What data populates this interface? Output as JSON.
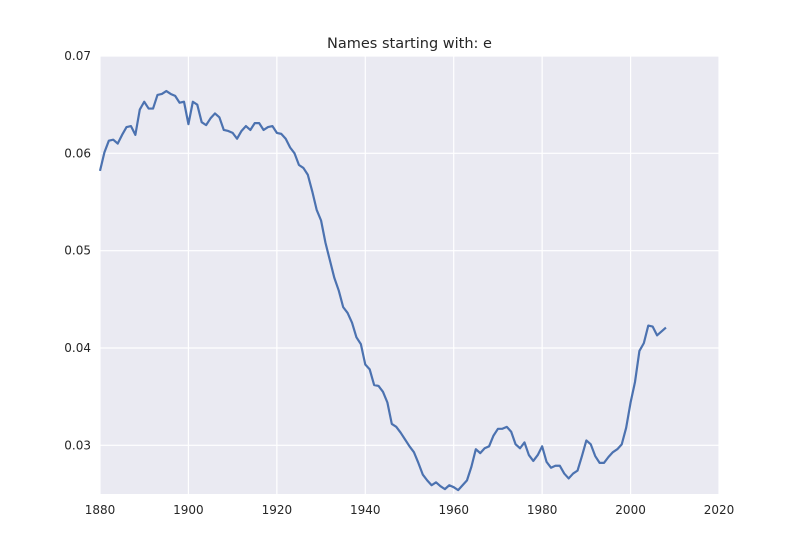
{
  "chart_data": {
    "type": "line",
    "title": "Names starting with: e",
    "xlabel": "",
    "ylabel": "",
    "xlim": [
      1880,
      2020
    ],
    "ylim": [
      0.025,
      0.07
    ],
    "x_ticks": [
      1880,
      1900,
      1920,
      1940,
      1960,
      1980,
      2000,
      2020
    ],
    "x_tick_labels": [
      "1880",
      "1900",
      "1920",
      "1940",
      "1960",
      "1980",
      "2000",
      "2020"
    ],
    "y_ticks": [
      0.03,
      0.04,
      0.05,
      0.06,
      0.07
    ],
    "y_tick_labels": [
      "0.03",
      "0.04",
      "0.05",
      "0.06",
      "0.07"
    ],
    "grid": true,
    "colors": {
      "background": "#eaeaf2",
      "grid": "#ffffff",
      "line": "#4c72b0",
      "text": "#262626"
    },
    "series": [
      {
        "x": [
          1880,
          1881,
          1882,
          1883,
          1884,
          1885,
          1886,
          1887,
          1888,
          1889,
          1890,
          1891,
          1892,
          1893,
          1894,
          1895,
          1896,
          1897,
          1898,
          1899,
          1900,
          1901,
          1902,
          1903,
          1904,
          1905,
          1906,
          1907,
          1908,
          1909,
          1910,
          1911,
          1912,
          1913,
          1914,
          1915,
          1916,
          1917,
          1918,
          1919,
          1920,
          1921,
          1922,
          1923,
          1924,
          1925,
          1926,
          1927,
          1928,
          1929,
          1930,
          1931,
          1932,
          1933,
          1934,
          1935,
          1936,
          1937,
          1938,
          1939,
          1940,
          1941,
          1942,
          1943,
          1944,
          1945,
          1946,
          1947,
          1948,
          1949,
          1950,
          1951,
          1952,
          1953,
          1954,
          1955,
          1956,
          1957,
          1958,
          1959,
          1960,
          1961,
          1962,
          1963,
          1964,
          1965,
          1966,
          1967,
          1968,
          1969,
          1970,
          1971,
          1972,
          1973,
          1974,
          1975,
          1976,
          1977,
          1978,
          1979,
          1980,
          1981,
          1982,
          1983,
          1984,
          1985,
          1986,
          1987,
          1988,
          1989,
          1990,
          1991,
          1992,
          1993,
          1994,
          1995,
          1996,
          1997,
          1998,
          1999,
          2000,
          2001,
          2002,
          2003,
          2004,
          2005,
          2006,
          2007,
          2008
        ],
        "values": [
          0.0582,
          0.0601,
          0.0613,
          0.0614,
          0.061,
          0.0619,
          0.0627,
          0.0628,
          0.0619,
          0.0645,
          0.0653,
          0.0646,
          0.0646,
          0.066,
          0.0661,
          0.0664,
          0.0661,
          0.0659,
          0.0652,
          0.0653,
          0.063,
          0.0653,
          0.065,
          0.0632,
          0.0629,
          0.0636,
          0.0641,
          0.0637,
          0.0624,
          0.0623,
          0.0621,
          0.0615,
          0.0623,
          0.0628,
          0.0624,
          0.0631,
          0.0631,
          0.0624,
          0.0627,
          0.0628,
          0.0621,
          0.062,
          0.0615,
          0.0606,
          0.06,
          0.0588,
          0.0585,
          0.0578,
          0.0561,
          0.0542,
          0.0531,
          0.0508,
          0.049,
          0.0472,
          0.0459,
          0.0442,
          0.0436,
          0.0426,
          0.0411,
          0.0404,
          0.0383,
          0.0378,
          0.0362,
          0.0361,
          0.0355,
          0.0344,
          0.0322,
          0.0319,
          0.0313,
          0.0306,
          0.0299,
          0.0293,
          0.0282,
          0.027,
          0.0264,
          0.0259,
          0.0262,
          0.0258,
          0.0255,
          0.0259,
          0.0257,
          0.0254,
          0.0259,
          0.0264,
          0.0278,
          0.0296,
          0.0292,
          0.0297,
          0.0299,
          0.031,
          0.0317,
          0.0317,
          0.0319,
          0.0314,
          0.0301,
          0.0297,
          0.0303,
          0.029,
          0.0284,
          0.029,
          0.0299,
          0.0283,
          0.0277,
          0.0279,
          0.0279,
          0.0271,
          0.0266,
          0.0271,
          0.0274,
          0.0289,
          0.0305,
          0.0301,
          0.0289,
          0.0282,
          0.0282,
          0.0288,
          0.0293,
          0.0296,
          0.0301,
          0.0318,
          0.0344,
          0.0365,
          0.0397,
          0.0405,
          0.0423,
          0.0422,
          0.0413,
          0.0417,
          0.0421
        ]
      }
    ]
  }
}
